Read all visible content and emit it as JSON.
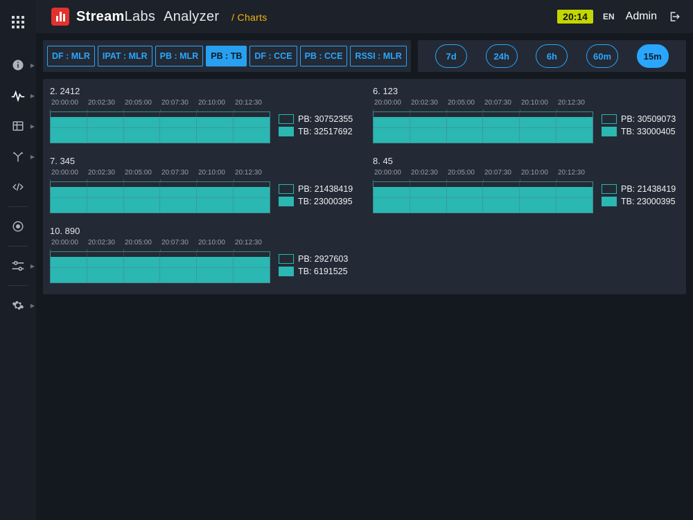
{
  "header": {
    "brand_bold": "Stream",
    "brand_thin": "Labs",
    "section": "Analyzer",
    "breadcrumb": "Charts",
    "clock": "20:14",
    "lang": "EN",
    "user": "Admin"
  },
  "colors": {
    "accent_blue": "#2aa6ff",
    "series_teal": "#2bb7b2",
    "panel_bg": "#232a35",
    "page_bg": "#14181f",
    "logo_red": "#e2322e",
    "clock_bg": "#c4d600"
  },
  "metric_chips": [
    {
      "label": "DF : MLR",
      "active": false
    },
    {
      "label": "IPAT : MLR",
      "active": false
    },
    {
      "label": "PB : MLR",
      "active": false
    },
    {
      "label": "PB : TB",
      "active": true
    },
    {
      "label": "DF : CCE",
      "active": false
    },
    {
      "label": "PB : CCE",
      "active": false
    },
    {
      "label": "RSSI : MLR",
      "active": false
    }
  ],
  "range_pills": [
    {
      "label": "7d",
      "active": false
    },
    {
      "label": "24h",
      "active": false
    },
    {
      "label": "6h",
      "active": false
    },
    {
      "label": "60m",
      "active": false
    },
    {
      "label": "15m",
      "active": true
    }
  ],
  "chart_common": {
    "x_ticks": [
      "20:00:00",
      "20:02:30",
      "20:05:00",
      "20:07:30",
      "20:10:00",
      "20:12:30"
    ],
    "pb_height_ratio": 0.65,
    "tb_height_ratio": 1.0,
    "series_color": "#2bb7b2",
    "plot_border_color": "#3a8a8f"
  },
  "charts": [
    {
      "title": "2. 2412",
      "pb_label": "PB: 30752355",
      "tb_label": "TB: 32517692"
    },
    {
      "title": "6. 123",
      "pb_label": "PB: 30509073",
      "tb_label": "TB: 33000405"
    },
    {
      "title": "7. 345",
      "pb_label": "PB: 21438419",
      "tb_label": "TB: 23000395"
    },
    {
      "title": "8. 45",
      "pb_label": "PB: 21438419",
      "tb_label": "TB: 23000395"
    },
    {
      "title": "10. 890",
      "pb_label": "PB: 2927603",
      "tb_label": "TB: 6191525"
    }
  ]
}
